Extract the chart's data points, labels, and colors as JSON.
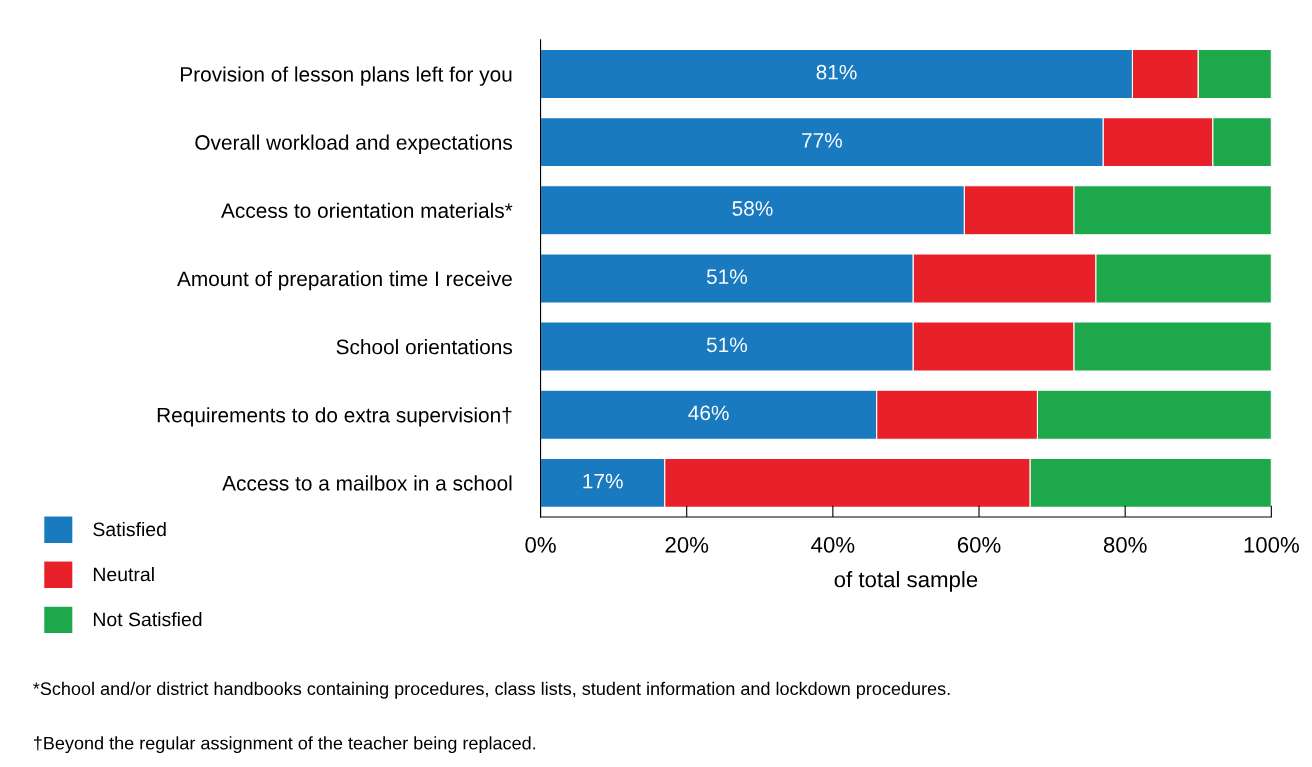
{
  "chart_data": {
    "type": "bar",
    "orientation": "horizontal",
    "stacked": true,
    "categories": [
      "Provision of lesson plans left for you",
      "Overall workload and expectations",
      "Access to orientation materials*",
      "Amount of preparation time I receive",
      "School orientations",
      "Requirements to do extra supervision†",
      "Access to a mailbox in a school"
    ],
    "series": [
      {
        "name": "Satisfied",
        "color": "#1a7abf",
        "values": [
          81,
          77,
          58,
          51,
          51,
          46,
          17
        ],
        "value_labels": [
          "81%",
          "77%",
          "58%",
          "51%",
          "51%",
          "46%",
          "17%"
        ]
      },
      {
        "name": "Neutral",
        "color": "#e8202a",
        "values": [
          9,
          15,
          15,
          25,
          22,
          22,
          50
        ]
      },
      {
        "name": "Not Satisfied",
        "color": "#1ea84c",
        "values": [
          10,
          8,
          27,
          24,
          27,
          32,
          33
        ]
      }
    ],
    "xlim": [
      0,
      100
    ],
    "xticks": [
      {
        "value": 0,
        "label": "0%"
      },
      {
        "value": 20,
        "label": "20%"
      },
      {
        "value": 40,
        "label": "40%"
      },
      {
        "value": 60,
        "label": "60%"
      },
      {
        "value": 80,
        "label": "80%"
      },
      {
        "value": 100,
        "label": "100%"
      }
    ],
    "xlabel": "of total sample",
    "legend": "bottom left",
    "grid": false,
    "annotations": [
      "*School and/or district handbooks containing procedures, class lists, student information and lockdown procedures.",
      "†Beyond the regular assignment of the teacher being replaced."
    ]
  }
}
